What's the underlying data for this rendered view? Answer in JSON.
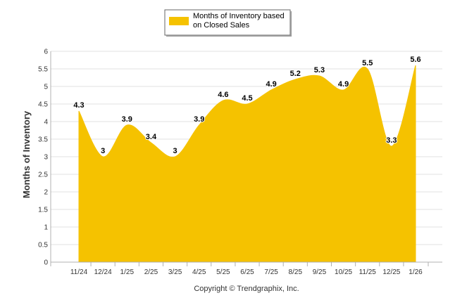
{
  "chart_data": {
    "type": "area",
    "categories": [
      "11/24",
      "12/24",
      "1/25",
      "2/25",
      "3/25",
      "4/25",
      "5/25",
      "6/25",
      "7/25",
      "8/25",
      "9/25",
      "10/25",
      "11/25",
      "12/25",
      "1/26"
    ],
    "series": [
      {
        "name": "Months of Inventory based on Closed Sales",
        "legend_lines": [
          "Months of Inventory based",
          "on Closed Sales"
        ],
        "color": "#F5C200",
        "values": [
          4.3,
          3,
          3.9,
          3.4,
          3,
          3.9,
          4.6,
          4.5,
          4.9,
          5.2,
          5.3,
          4.9,
          5.5,
          3.3,
          5.6
        ]
      }
    ],
    "title": "",
    "xlabel": "",
    "ylabel": "Months of Inventory",
    "ylim": [
      0,
      6
    ],
    "yticks": [
      "0",
      "0.5",
      "1",
      "1.5",
      "2",
      "2.5",
      "3",
      "3.5",
      "4",
      "4.5",
      "5",
      "5.5",
      "6"
    ],
    "grid": true,
    "legend_position": "top-center"
  },
  "footer": {
    "copyright": "Copyright © Trendgraphix, Inc."
  }
}
